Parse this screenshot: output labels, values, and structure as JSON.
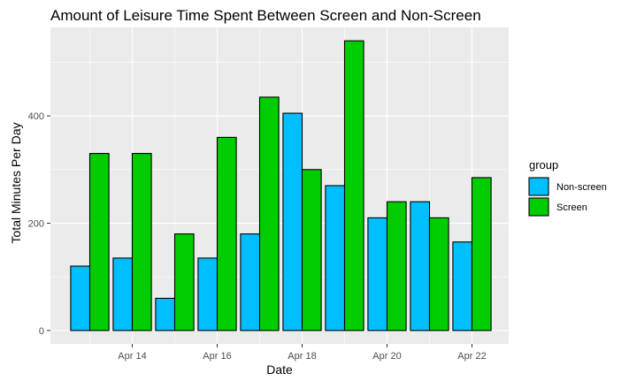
{
  "chart_data": {
    "type": "bar",
    "title": "Amount of Leisure Time Spent Between Screen and Non-Screen",
    "xlabel": "Date",
    "ylabel": "Total Minutes Per Day",
    "ylim": [
      -25,
      565
    ],
    "yticks": [
      0,
      200,
      400
    ],
    "x_axis_type": "date",
    "categories": [
      "2020-04-13",
      "2020-04-14",
      "2020-04-15",
      "2020-04-16",
      "2020-04-17",
      "2020-04-18",
      "2020-04-19",
      "2020-04-20",
      "2020-04-21",
      "2020-04-22"
    ],
    "xticks": [
      {
        "date": "2020-04-14",
        "label": "Apr 14"
      },
      {
        "date": "2020-04-16",
        "label": "Apr 16"
      },
      {
        "date": "2020-04-18",
        "label": "Apr 18"
      },
      {
        "date": "2020-04-20",
        "label": "Apr 20"
      },
      {
        "date": "2020-04-22",
        "label": "Apr 22"
      }
    ],
    "legend_title": "group",
    "legend_position": "right",
    "grid": true,
    "series": [
      {
        "name": "Non-screen",
        "color": "#00BFFF",
        "values": [
          120,
          135,
          60,
          135,
          180,
          405,
          270,
          210,
          240,
          165
        ]
      },
      {
        "name": "Screen",
        "color": "#00CD00",
        "values": [
          330,
          330,
          180,
          360,
          435,
          300,
          540,
          240,
          210,
          285
        ]
      }
    ],
    "panel_background": "#EBEBEB",
    "grid_color": "#FFFFFF"
  }
}
